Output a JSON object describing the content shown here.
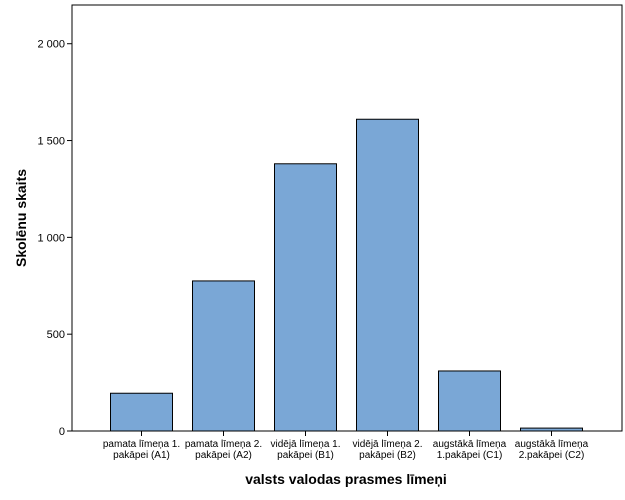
{
  "chart_data": {
    "type": "bar",
    "categories": [
      [
        "pamata līmeņa 1.",
        "pakāpei (A1)"
      ],
      [
        "pamata līmeņa 2.",
        "pakāpei (A2)"
      ],
      [
        "vidējā līmeņa 1.",
        "pakāpei (B1)"
      ],
      [
        "vidējā līmeņa 2.",
        "pakāpei (B2)"
      ],
      [
        "augstākā līmeņa",
        "1.pakāpei (C1)"
      ],
      [
        "augstākā līmeņa",
        "2.pakāpei (C2)"
      ]
    ],
    "values": [
      195,
      775,
      1380,
      1610,
      310,
      15
    ],
    "xlabel": "valsts valodas prasmes līmeņi",
    "ylabel": "Skolēnu skaits",
    "ylim": [
      0,
      2200
    ],
    "yticks": [
      0,
      500,
      1000,
      1500,
      2000
    ],
    "ytick_labels": [
      "0",
      "500",
      "1 000",
      "1 500",
      "2 000"
    ],
    "bar_color": "#7aa7d6",
    "grid": false
  }
}
